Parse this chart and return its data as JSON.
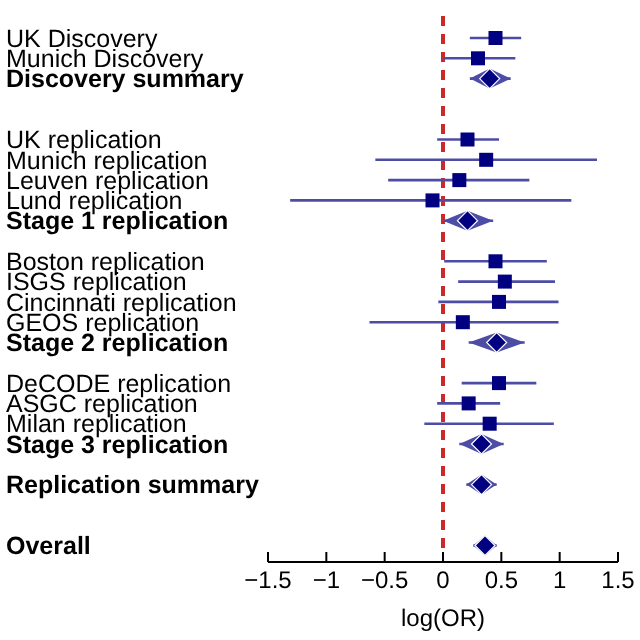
{
  "chart_data": {
    "type": "scatter",
    "orientation": "horizontal",
    "xlabel": "log(OR)",
    "categories": [
      "UK Discovery",
      "Munich Discovery",
      "Discovery summary",
      null,
      null,
      "UK replication",
      "Munich replication",
      "Leuven replication",
      "Lund replication",
      "Stage 1 replication",
      null,
      "Boston replication",
      "ISGS replication",
      "Cincinnati replication",
      "GEOS replication",
      "Stage 2 replication",
      null,
      "DeCODE replication",
      "ASGC replication",
      "Milan replication",
      "Stage 3 replication",
      null,
      "Replication summary",
      null,
      null,
      "Overall"
    ],
    "series": [
      {
        "color": "#000080",
        "marker": "square",
        "values": [
          0.45,
          0.3,
          null,
          null,
          null,
          0.21,
          0.37,
          0.14,
          -0.09,
          null,
          null,
          0.45,
          0.53,
          0.48,
          0.17,
          null,
          null,
          0.48,
          0.22,
          0.4,
          null,
          null,
          null,
          null,
          null,
          null
        ],
        "errors": [
          [
            0.23,
            0.67
          ],
          [
            0.0,
            0.62
          ],
          null,
          null,
          null,
          [
            -0.05,
            0.48
          ],
          [
            -0.58,
            1.32
          ],
          [
            -0.47,
            0.74
          ],
          [
            -1.31,
            1.1
          ],
          null,
          null,
          [
            0.01,
            0.89
          ],
          [
            0.13,
            0.96
          ],
          [
            -0.04,
            0.99
          ],
          [
            -0.63,
            0.99
          ],
          null,
          null,
          [
            0.16,
            0.8
          ],
          [
            -0.05,
            0.49
          ],
          [
            -0.16,
            0.95
          ],
          null,
          null,
          null,
          null,
          null,
          null
        ]
      },
      {
        "color": "#000080",
        "marker": "diamond",
        "values": [
          null,
          null,
          0.4,
          null,
          null,
          null,
          null,
          null,
          null,
          0.21,
          null,
          null,
          null,
          null,
          null,
          0.46,
          null,
          null,
          null,
          null,
          0.33,
          null,
          0.33,
          null,
          null,
          0.36
        ],
        "errors": [
          null,
          null,
          [
            0.23,
            0.58
          ],
          null,
          null,
          null,
          null,
          null,
          null,
          [
            0.0,
            0.43
          ],
          null,
          null,
          null,
          null,
          null,
          [
            0.22,
            0.7
          ],
          null,
          null,
          null,
          null,
          [
            0.14,
            0.52
          ],
          null,
          [
            0.2,
            0.46
          ],
          null,
          null,
          [
            0.26,
            0.46
          ]
        ]
      }
    ],
    "xlim": [
      -1.5,
      1.5
    ],
    "xticks": [
      -1.5,
      -1,
      -0.5,
      0,
      0.5,
      1,
      1.5
    ],
    "ref_lines": [
      {
        "axis": "x",
        "value": 0,
        "color": "#cc2a2a",
        "line_style": "dashed"
      }
    ]
  }
}
